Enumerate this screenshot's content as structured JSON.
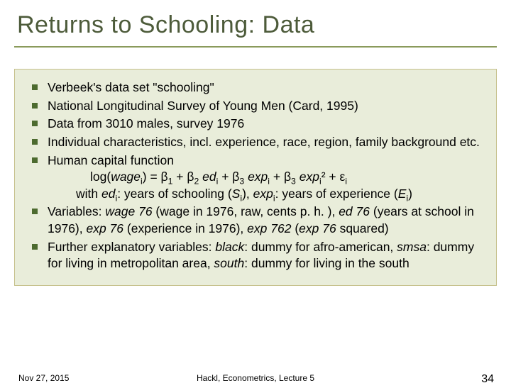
{
  "styling": {
    "slide_width": 720,
    "slide_height": 540,
    "background": "#ffffff",
    "title_color": "#4d5b3a",
    "title_fontsize": 34,
    "title_underline_color": "#8a9a5b",
    "content_background": "#e9edda",
    "content_border_color": "#c5c08a",
    "bullet_color": "#4d6b2f",
    "bullet_size": 8,
    "body_fontsize": 17.5,
    "footer_fontsize": 12,
    "page_number_fontsize": 16
  },
  "title": "Returns to Schooling: Data",
  "bullets": {
    "b1": "Verbeek's data set \"schooling\"",
    "b2": "National Longitudinal Survey of Young Men (Card, 1995)",
    "b3": "Data from 3010 males, survey 1976",
    "b4": "Individual characteristics, incl. experience, race, region, family background etc.",
    "b5": "Human capital function"
  },
  "formula": {
    "line": "log(wageᵢ) = β₁ + β₂ edᵢ + β₃ expᵢ + β₃ expᵢ² + εᵢ",
    "sub": "with edᵢ: years of schooling (Sᵢ), expᵢ: years of experience (Eᵢ)"
  },
  "bullets2": {
    "b6": "Variables: wage 76 (wage in 1976, raw, cents p. h. ), ed 76 (years at school in 1976), exp 76 (experience in 1976), exp 762 (exp 76 squared)",
    "b7": "Further explanatory variables: black: dummy for afro-american, smsa: dummy for living in metropolitan area, south: dummy for living in the south"
  },
  "footer": {
    "date": "Nov 27, 2015",
    "center": "Hackl,  Econometrics, Lecture 5",
    "page": "34"
  }
}
